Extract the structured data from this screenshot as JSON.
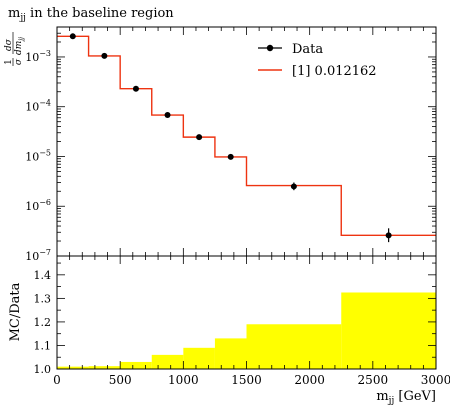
{
  "chart_data": [
    {
      "type": "line",
      "title": "m_jj in the baseline region",
      "title_main": "m",
      "title_sub": "jj",
      "title_rest": " in the baseline region",
      "ylabel": "1/σ dσ/dm_jj",
      "ylabel_parts": {
        "one": "1",
        "sigma": "σ",
        "num": "dσ",
        "den": "dm",
        "den_sub": "jj"
      },
      "xlabel": "m_jj [GeV]",
      "xlabel_main": "m",
      "xlabel_sub": "jj",
      "xlabel_rest": " [GeV]",
      "y_scale": "log",
      "xlim": [
        0,
        3000
      ],
      "ylim": [
        1e-07,
        0.004
      ],
      "bin_edges": [
        0,
        250,
        500,
        750,
        1000,
        1250,
        1500,
        2250,
        3000
      ],
      "y_tick_labels": [
        {
          "value": 1e-07,
          "exp": "−7"
        },
        {
          "value": 1e-06,
          "exp": "−6"
        },
        {
          "value": 1e-05,
          "exp": "−5"
        },
        {
          "value": 0.0001,
          "exp": "−4"
        },
        {
          "value": 0.001,
          "exp": "−3"
        }
      ],
      "y_tick_base": "10",
      "series": [
        {
          "name": "Data",
          "kind": "points",
          "color": "#000000",
          "x": [
            125,
            375,
            625,
            875,
            1125,
            1375,
            1875,
            2625
          ],
          "values": [
            0.0026,
            0.00105,
            0.00023,
            6.8e-05,
            2.45e-05,
            9.8e-06,
            2.5e-06,
            2.6e-07
          ],
          "err_low": [
            0.0026,
            0.00105,
            0.00023,
            6.8e-05,
            2.45e-05,
            9.8e-06,
            2.1e-06,
            1.9e-07
          ],
          "err_high": [
            0.0026,
            0.00105,
            0.00023,
            6.8e-05,
            2.45e-05,
            9.8e-06,
            3e-06,
            3.6e-07
          ]
        },
        {
          "name": "[1] 0.012162",
          "kind": "histogram",
          "color": "#ee3311",
          "values": [
            0.0026,
            0.00105,
            0.00023,
            6.8e-05,
            2.45e-05,
            9.8e-06,
            2.6e-06,
            2.6e-07
          ]
        }
      ],
      "legend_placement": "top-right"
    },
    {
      "type": "area",
      "ylabel": "MC/Data",
      "xlabel": "m_jj [GeV]",
      "xlim": [
        0,
        3000
      ],
      "ylim": [
        1.0,
        1.48
      ],
      "x_ticks": [
        0,
        500,
        1000,
        1500,
        2000,
        2500,
        3000
      ],
      "x_tick_labels": [
        "0",
        "500",
        "1000",
        "1500",
        "2000",
        "2500",
        "3000"
      ],
      "y_ticks": [
        1.0,
        1.1,
        1.2,
        1.3,
        1.4
      ],
      "y_tick_labels": [
        "1.0",
        "1.1",
        "1.2",
        "1.3",
        "1.4"
      ],
      "bin_edges": [
        0,
        250,
        500,
        750,
        1000,
        1250,
        1500,
        2250,
        3000
      ],
      "band_color": "#ffff00",
      "ratio_line": 1.0,
      "band_low": [
        1.0,
        1.0,
        1.0,
        1.0,
        1.0,
        1.0,
        1.0,
        1.0
      ],
      "band_high": [
        1.01,
        1.012,
        1.03,
        1.06,
        1.09,
        1.13,
        1.19,
        1.325
      ]
    }
  ]
}
